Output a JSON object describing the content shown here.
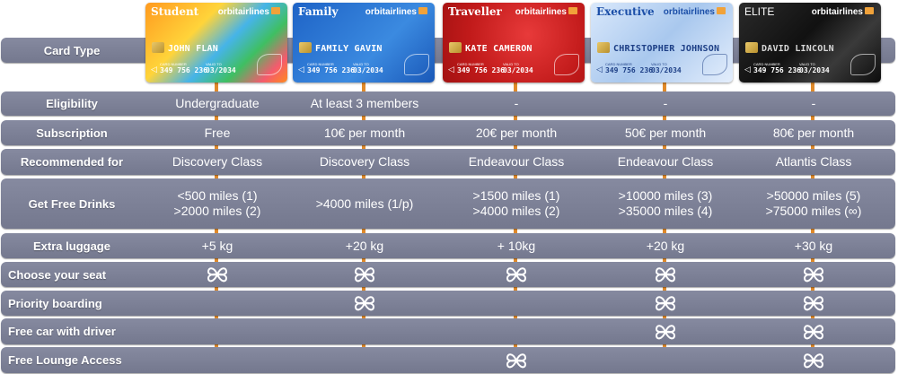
{
  "header": {
    "label": "Card Type"
  },
  "cards": [
    {
      "tier": "Student",
      "brand": "orbitairlines",
      "holder": "JOHN FLAN",
      "meta_a": "CARD NUMBER",
      "meta_b": "VALID TO",
      "number": "349 756 236",
      "expiry": "03/2034"
    },
    {
      "tier": "Family",
      "brand": "orbitairlines",
      "holder": "FAMILY GAVIN",
      "meta_a": "CARD NUMBER",
      "meta_b": "VALID TO",
      "number": "349 756 236",
      "expiry": "03/2034"
    },
    {
      "tier": "Traveller",
      "brand": "orbitairlines",
      "holder": "KATE CAMERON",
      "meta_a": "CARD NUMBER",
      "meta_b": "VALID TO",
      "number": "349 756 236",
      "expiry": "03/2034"
    },
    {
      "tier": "Executive",
      "brand": "orbitairlines",
      "holder": "CHRISTOPHER JOHNSON",
      "meta_a": "CARD NUMBER",
      "meta_b": "VALID TO",
      "number": "349 756 236",
      "expiry": "03/2034"
    },
    {
      "tier": "ELITE",
      "brand": "orbitairlines",
      "holder": "DAVID LINCOLN",
      "meta_a": "CARD NUMBER",
      "meta_b": "VALID TO",
      "number": "349 756 236",
      "expiry": "03/2034"
    }
  ],
  "icon_names": {
    "feature_mark": "orbit-logo-icon",
    "card_logo": "envelope-logo-icon"
  },
  "colors": {
    "row_bg": "#7d8197",
    "connector": "#e08a2a"
  },
  "rows": [
    {
      "label": "Eligibility",
      "cells": [
        [
          "Undergraduate"
        ],
        [
          "At least 3 members"
        ],
        [
          "-"
        ],
        [
          "-"
        ],
        [
          "-"
        ]
      ]
    },
    {
      "label": "Subscription",
      "cells": [
        [
          "Free"
        ],
        [
          "10€ per month"
        ],
        [
          "20€ per month"
        ],
        [
          "50€ per month"
        ],
        [
          "80€ per month"
        ]
      ]
    },
    {
      "label": "Recommended for",
      "cells": [
        [
          "Discovery Class"
        ],
        [
          "Discovery Class"
        ],
        [
          "Endeavour Class"
        ],
        [
          "Endeavour Class"
        ],
        [
          "Atlantis Class"
        ]
      ]
    },
    {
      "label": "Get Free Drinks",
      "cells": [
        [
          "<500 miles (1)",
          ">2000 miles (2)"
        ],
        [
          ">4000 miles (1/p)"
        ],
        [
          ">1500 miles (1)",
          ">4000 miles (2)"
        ],
        [
          ">10000 miles (3)",
          ">35000 miles (4)"
        ],
        [
          ">50000 miles (5)",
          ">75000 miles (∞)"
        ]
      ]
    },
    {
      "label": "Extra luggage",
      "cells": [
        [
          "+5 kg"
        ],
        [
          "+20 kg"
        ],
        [
          "+ 10kg"
        ],
        [
          "+20 kg"
        ],
        [
          "+30 kg"
        ]
      ]
    }
  ],
  "features": [
    {
      "label": "Choose your seat",
      "included": [
        true,
        true,
        true,
        true,
        true
      ]
    },
    {
      "label": "Priority boarding",
      "included": [
        false,
        true,
        false,
        true,
        true
      ]
    },
    {
      "label": "Free car with driver",
      "included": [
        false,
        false,
        false,
        true,
        true
      ]
    },
    {
      "label": "Free Lounge Access",
      "included": [
        false,
        false,
        true,
        false,
        true
      ]
    }
  ]
}
